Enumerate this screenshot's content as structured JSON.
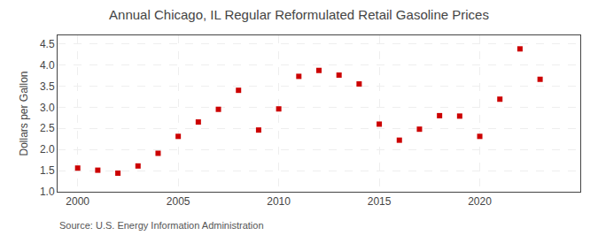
{
  "chart_data": {
    "type": "scatter",
    "title": "Annual Chicago, IL Regular Reformulated Retail Gasoline Prices",
    "ylabel": "Dollars per Gallon",
    "annotations": [
      "Source: U.S. Energy Information Administration"
    ],
    "x": [
      2000,
      2001,
      2002,
      2003,
      2004,
      2005,
      2006,
      2007,
      2008,
      2009,
      2010,
      2011,
      2012,
      2013,
      2014,
      2015,
      2016,
      2017,
      2018,
      2019,
      2020,
      2021,
      2022,
      2023
    ],
    "values": [
      1.56,
      1.51,
      1.44,
      1.61,
      1.91,
      2.31,
      2.65,
      2.95,
      3.4,
      2.46,
      2.96,
      3.73,
      3.87,
      3.76,
      3.55,
      2.6,
      2.22,
      2.48,
      2.8,
      2.79,
      2.31,
      3.19,
      4.38,
      3.66
    ],
    "color": "#cc0000",
    "marker": "square",
    "xlim": [
      1999,
      2025
    ],
    "ylim": [
      1.0,
      4.7
    ],
    "xticks": [
      2000,
      2005,
      2010,
      2015,
      2020
    ],
    "yticks": [
      {
        "value": 1.0,
        "label": "1.0"
      },
      1.5,
      {
        "value": 2.0,
        "label": "2.0"
      },
      2.5,
      {
        "value": 3.0,
        "label": "3.0"
      },
      3.5,
      {
        "value": 4.0,
        "label": "4.0"
      },
      4.5
    ],
    "grid": true
  }
}
